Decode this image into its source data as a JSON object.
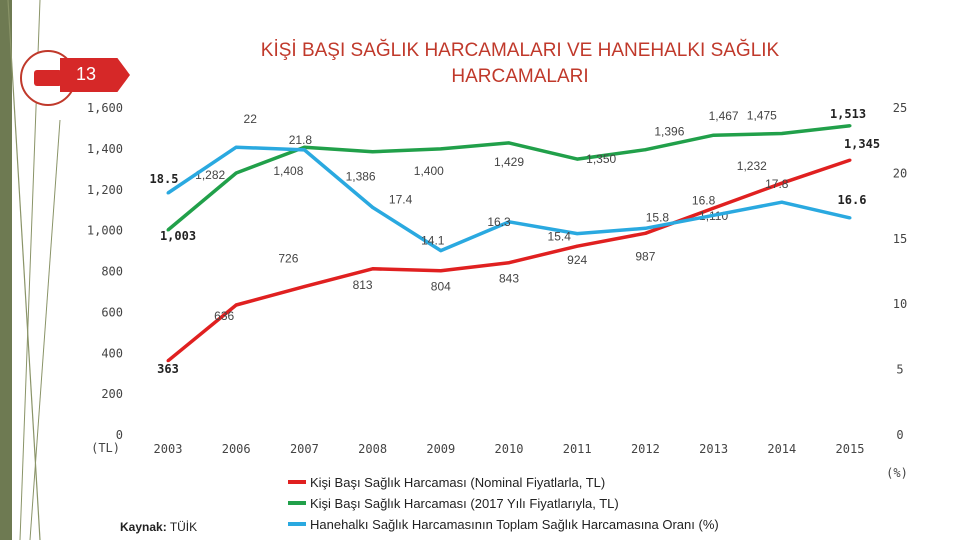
{
  "page": {
    "number": "13"
  },
  "title_line1": "KİŞİ BAŞI SAĞLIK HARCAMALARI VE HANEHALKI SAĞLIK",
  "title_line2": "HARCAMALARI",
  "source": {
    "label": "Kaynak:",
    "value": "TÜİK"
  },
  "chart_data": {
    "type": "line",
    "title": "KİŞİ BAŞI SAĞLIK HARCAMALARI VE HANEHALKI SAĞLIK HARCAMALARI",
    "categories": [
      "2003",
      "2006",
      "2007",
      "2008",
      "2009",
      "2010",
      "2011",
      "2012",
      "2013",
      "2014",
      "2015"
    ],
    "y_left": {
      "label": "(TL)",
      "ticks": [
        "0",
        "200",
        "400",
        "600",
        "800",
        "1,000",
        "1,200",
        "1,400",
        "1,600"
      ],
      "range": [
        0,
        1600
      ]
    },
    "y_right": {
      "label": "(%)",
      "ticks": [
        "0",
        "5",
        "10",
        "15",
        "20",
        "25"
      ],
      "range": [
        0,
        25
      ]
    },
    "series": [
      {
        "name": "Kişi Başı Sağlık Harcaması (Nominal Fiyatlarla, TL)",
        "color": "#e02020",
        "axis": "left",
        "values": [
          363,
          636,
          726,
          813,
          804,
          843,
          924,
          987,
          1110,
          1232,
          1345
        ],
        "labels": [
          "363",
          "636",
          "726",
          "813",
          "804",
          "843",
          "924",
          "987",
          "1,110",
          "1,232",
          "1,345"
        ]
      },
      {
        "name": "Kişi Başı Sağlık Harcaması (2017 Yılı Fiyatlarıyla, TL)",
        "color": "#21a04a",
        "axis": "left",
        "values": [
          1003,
          1282,
          1408,
          1386,
          1400,
          1429,
          1350,
          1396,
          1467,
          1475,
          1513
        ],
        "labels": [
          "1,003",
          "1,282",
          "1,408",
          "1,386",
          "1,400",
          "1,429",
          "1,350",
          "1,396",
          "1,467",
          "1,475",
          "1,513"
        ]
      },
      {
        "name": "Hanehalkı Sağlık Harcamasının Toplam Sağlık Harcamasına Oranı (%)",
        "color": "#2aa9e0",
        "axis": "right",
        "values": [
          18.5,
          22,
          21.8,
          17.4,
          14.1,
          16.3,
          15.4,
          15.8,
          16.8,
          17.8,
          16.6
        ],
        "labels": [
          "18.5",
          "22",
          "21.8",
          "17.4",
          "14.1",
          "16.3",
          "15.4",
          "15.8",
          "16.8",
          "17.8",
          "16.6"
        ]
      }
    ],
    "grid": false,
    "legend_position": "bottom-center"
  }
}
